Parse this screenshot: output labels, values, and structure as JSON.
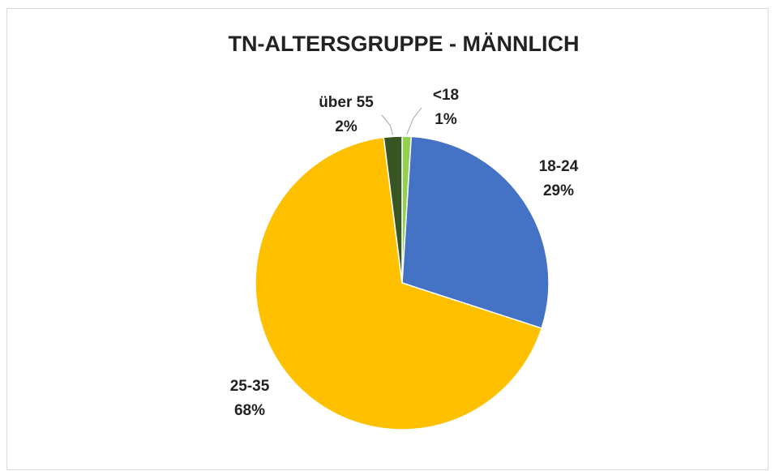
{
  "chart_data": {
    "type": "pie",
    "title": "TN-ALTERSGRUPPE - MÄNNLICH",
    "categories": [
      "<18",
      "18-24",
      "25-35",
      "über 55"
    ],
    "values": [
      1,
      29,
      68,
      2
    ],
    "value_labels": [
      "1%",
      "29%",
      "68%",
      "2%"
    ],
    "colors": [
      "#92d050",
      "#4472c4",
      "#ffc000",
      "#375623"
    ]
  }
}
